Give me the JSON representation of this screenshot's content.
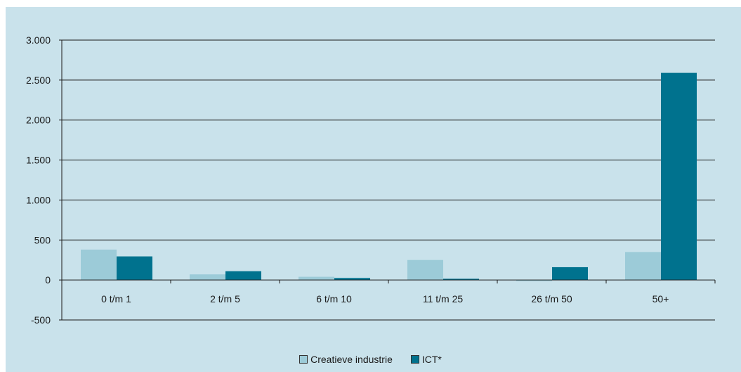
{
  "chart_data": {
    "type": "bar",
    "categories": [
      "0 t/m 1",
      "2 t/m 5",
      "6 t/m 10",
      "11 t/m 25",
      "26 t/m 50",
      "50+"
    ],
    "series": [
      {
        "name": "Creatieve industrie",
        "color": "#9ccbd8",
        "values": [
          380,
          70,
          40,
          250,
          -15,
          350
        ]
      },
      {
        "name": "ICT*",
        "color": "#00728e",
        "values": [
          295,
          110,
          25,
          15,
          160,
          2590
        ]
      }
    ],
    "ylim": [
      -500,
      3000
    ],
    "yticks": [
      -500,
      0,
      500,
      1000,
      1500,
      2000,
      2500,
      3000
    ],
    "ytick_labels": [
      "-500",
      "0",
      "500",
      "1.000",
      "1.500",
      "2.000",
      "2.500",
      "3.000"
    ],
    "grid": true,
    "legend_position": "bottom"
  }
}
